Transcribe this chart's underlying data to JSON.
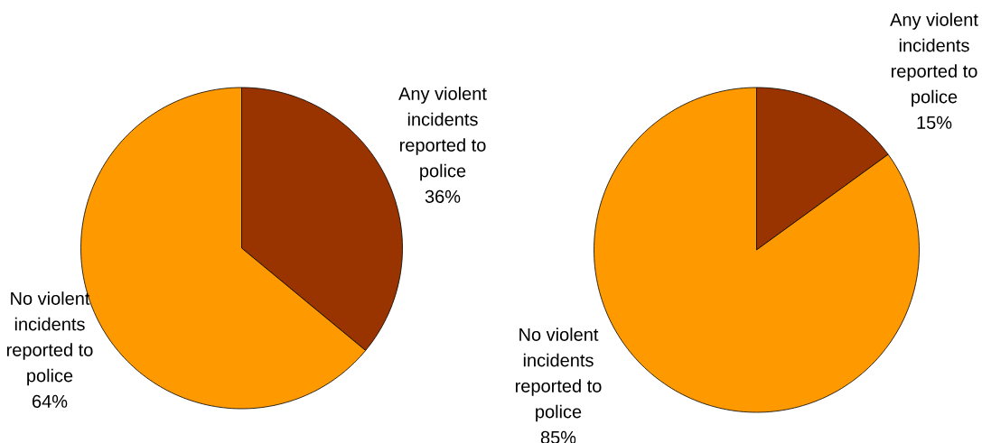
{
  "chart_data": [
    {
      "type": "pie",
      "categories": [
        "Any violent incidents reported to police",
        "No violent incidents reported to police"
      ],
      "values": [
        36,
        64
      ],
      "colors": [
        "#993300",
        "#ff9900"
      ],
      "value_labels": [
        "36%",
        "64%"
      ]
    },
    {
      "type": "pie",
      "categories": [
        "Any violent incidents reported to police",
        "No violent incidents reported to police"
      ],
      "values": [
        15,
        85
      ],
      "colors": [
        "#993300",
        "#ff9900"
      ],
      "value_labels": [
        "15%",
        "85%"
      ]
    }
  ]
}
